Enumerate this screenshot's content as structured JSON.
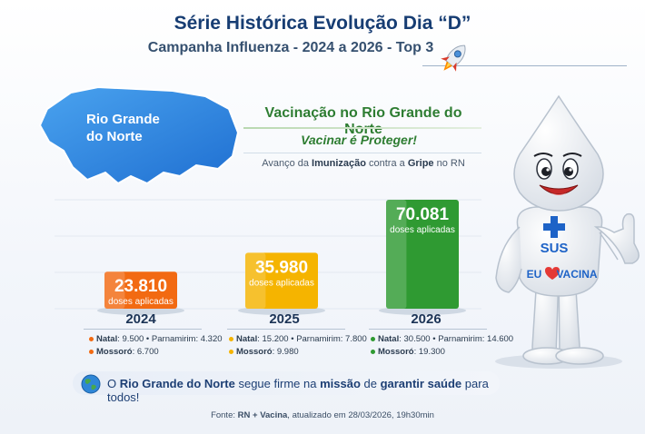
{
  "header": {
    "title": "Série Histórica Evolução Dia “D”",
    "subtitle": "Campanha Influenza - 2024 a 2026 - Top 3"
  },
  "map": {
    "label_line1": "Rio Grande",
    "label_line2": "do Norte"
  },
  "panel": {
    "heading": "Vacinação no Rio Grande do Norte",
    "slogan": "Vacinar é Proteger!",
    "lead_parts": [
      "Avanço da ",
      "Imunização",
      " contra a ",
      "Gripe",
      " no RN"
    ]
  },
  "chart_data": {
    "type": "bar",
    "categories": [
      "2024",
      "2025",
      "2026"
    ],
    "values": [
      23810,
      35980,
      70081
    ],
    "value_labels": [
      "23.810",
      "35.980",
      "70.081"
    ],
    "unit_label": "doses aplicadas",
    "ylim": [
      0,
      70081
    ],
    "colors": [
      "#f26a12",
      "#f5b400",
      "#2f9a32"
    ],
    "breakdown": [
      [
        {
          "city": "Natal",
          "value": "9.500"
        },
        {
          "city": "Parnamirim",
          "value": "4.320"
        },
        {
          "city": "Mossoró",
          "value": "6.700"
        }
      ],
      [
        {
          "city": "Natal",
          "value": "15.200"
        },
        {
          "city": "Parnamirim",
          "value": "7.800"
        },
        {
          "city": "Mossoró",
          "value": "9.980"
        }
      ],
      [
        {
          "city": "Natal",
          "value": "30.500"
        },
        {
          "city": "Parnamirim",
          "value": "14.600"
        },
        {
          "city": "Mossoró",
          "value": "19.300"
        }
      ]
    ]
  },
  "mascot": {
    "badge": "SUS",
    "shirt_text_left": "EU",
    "shirt_text_right": "VACINA"
  },
  "footer": {
    "message_parts": [
      "O ",
      "Rio Grande do Norte",
      " segue firme na ",
      "missão",
      " de ",
      "garantir saúde",
      " para todos!"
    ],
    "source_prefix": "Fonte: ",
    "source_bold": "RN + Vacina",
    "source_suffix": ", atualizado em 28/03/2026, 19h30min"
  }
}
